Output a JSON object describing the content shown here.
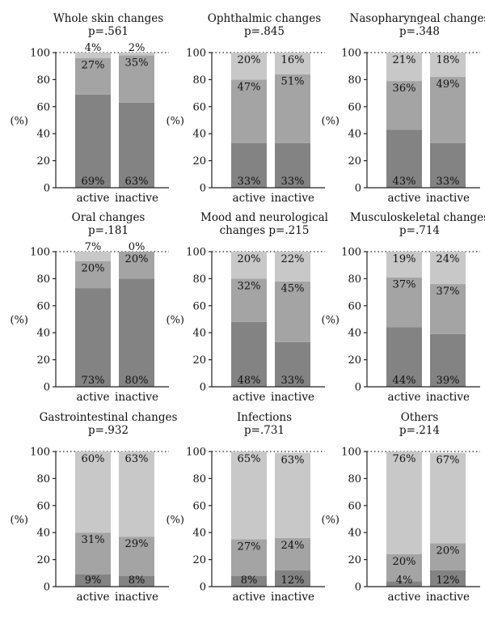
{
  "y_axis_unit": "(%)",
  "chart_data": [
    {
      "type": "bar",
      "stacked": true,
      "title": "Whole skin changes",
      "subtitle": "p=.561",
      "categories": [
        "active",
        "inactive"
      ],
      "ylim": [
        0,
        100
      ],
      "yticks": [
        0,
        20,
        40,
        60,
        80,
        100
      ],
      "ylabel": "(%)",
      "grid": false,
      "series": [
        {
          "values": [
            69,
            63
          ]
        },
        {
          "values": [
            27,
            35
          ]
        },
        {
          "values": [
            4,
            2
          ]
        }
      ]
    },
    {
      "type": "bar",
      "stacked": true,
      "title": "Ophthalmic changes",
      "subtitle": "p=.845",
      "categories": [
        "active",
        "inactive"
      ],
      "ylim": [
        0,
        100
      ],
      "yticks": [
        0,
        20,
        40,
        60,
        80,
        100
      ],
      "ylabel": "(%)",
      "grid": false,
      "series": [
        {
          "values": [
            33,
            33
          ]
        },
        {
          "values": [
            47,
            51
          ]
        },
        {
          "values": [
            20,
            16
          ]
        }
      ]
    },
    {
      "type": "bar",
      "stacked": true,
      "title": "Nasopharyngeal changes",
      "subtitle": "p=.348",
      "categories": [
        "active",
        "inactive"
      ],
      "ylim": [
        0,
        100
      ],
      "yticks": [
        0,
        20,
        40,
        60,
        80,
        100
      ],
      "ylabel": "(%)",
      "grid": false,
      "series": [
        {
          "values": [
            43,
            33
          ]
        },
        {
          "values": [
            36,
            49
          ]
        },
        {
          "values": [
            21,
            18
          ]
        }
      ]
    },
    {
      "type": "bar",
      "stacked": true,
      "title": "Oral changes",
      "subtitle": "p=.181",
      "categories": [
        "active",
        "inactive"
      ],
      "ylim": [
        0,
        100
      ],
      "yticks": [
        0,
        20,
        40,
        60,
        80,
        100
      ],
      "ylabel": "(%)",
      "grid": false,
      "series": [
        {
          "values": [
            73,
            80
          ]
        },
        {
          "values": [
            20,
            20
          ]
        },
        {
          "values": [
            7,
            0
          ]
        }
      ]
    },
    {
      "type": "bar",
      "stacked": true,
      "title": "Mood and neurological",
      "subtitle": "changes p=.215",
      "categories": [
        "active",
        "inactive"
      ],
      "ylim": [
        0,
        100
      ],
      "yticks": [
        0,
        20,
        40,
        60,
        80,
        100
      ],
      "ylabel": "(%)",
      "grid": false,
      "series": [
        {
          "values": [
            48,
            33
          ]
        },
        {
          "values": [
            32,
            45
          ]
        },
        {
          "values": [
            20,
            22
          ]
        }
      ]
    },
    {
      "type": "bar",
      "stacked": true,
      "title": "Musculoskeletal changes",
      "subtitle": "p=.714",
      "categories": [
        "active",
        "inactive"
      ],
      "ylim": [
        0,
        100
      ],
      "yticks": [
        0,
        20,
        40,
        60,
        80,
        100
      ],
      "ylabel": "(%)",
      "grid": false,
      "series": [
        {
          "values": [
            44,
            39
          ]
        },
        {
          "values": [
            37,
            37
          ]
        },
        {
          "values": [
            19,
            24
          ]
        }
      ]
    },
    {
      "type": "bar",
      "stacked": true,
      "title": "Gastrointestinal changes",
      "subtitle": "p=.932",
      "categories": [
        "active",
        "inactive"
      ],
      "ylim": [
        0,
        100
      ],
      "yticks": [
        0,
        20,
        40,
        60,
        80,
        100
      ],
      "ylabel": "(%)",
      "grid": false,
      "series": [
        {
          "values": [
            9,
            8
          ]
        },
        {
          "values": [
            31,
            29
          ]
        },
        {
          "values": [
            60,
            63
          ]
        }
      ]
    },
    {
      "type": "bar",
      "stacked": true,
      "title": "Infections",
      "subtitle": "p=.731",
      "categories": [
        "active",
        "inactive"
      ],
      "ylim": [
        0,
        100
      ],
      "yticks": [
        0,
        20,
        40,
        60,
        80,
        100
      ],
      "ylabel": "(%)",
      "grid": false,
      "series": [
        {
          "values": [
            8,
            12
          ]
        },
        {
          "values": [
            27,
            24
          ]
        },
        {
          "values": [
            65,
            63
          ]
        }
      ]
    },
    {
      "type": "bar",
      "stacked": true,
      "title": "Others",
      "subtitle": "p=.214",
      "categories": [
        "active",
        "inactive"
      ],
      "ylim": [
        0,
        100
      ],
      "yticks": [
        0,
        20,
        40,
        60,
        80,
        100
      ],
      "ylabel": "(%)",
      "grid": false,
      "series": [
        {
          "values": [
            4,
            12
          ]
        },
        {
          "values": [
            20,
            20
          ]
        },
        {
          "values": [
            76,
            67
          ]
        }
      ]
    }
  ],
  "colors": {
    "series": [
      "#838383",
      "#a4a4a4",
      "#c8c8c8"
    ],
    "axis": "#222222",
    "text": "#111111"
  }
}
